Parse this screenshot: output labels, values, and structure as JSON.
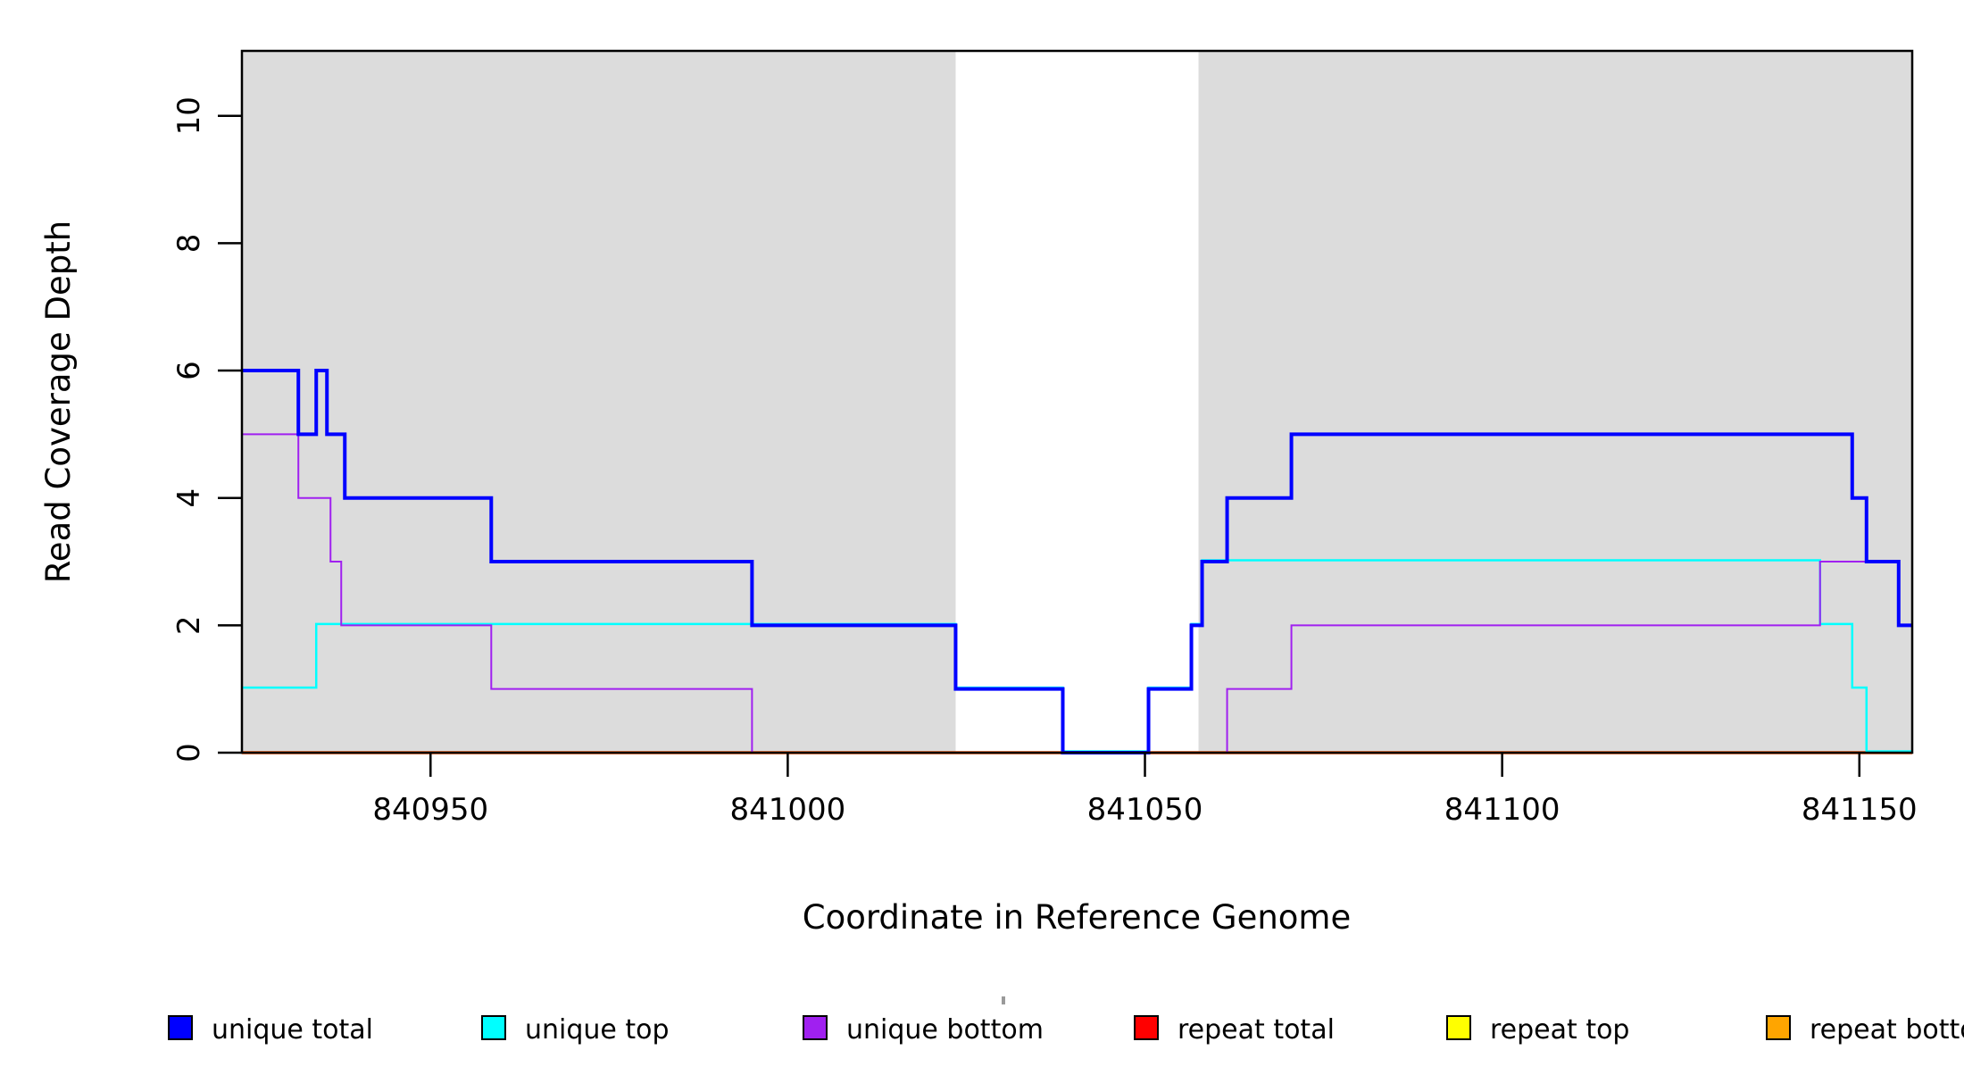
{
  "figure": {
    "xlabel": "Coordinate in Reference Genome",
    "ylabel": "Read Coverage Depth"
  },
  "chart_data": {
    "type": "line",
    "subtype": "step-coverage",
    "title": "",
    "xlabel": "Coordinate in Reference Genome",
    "ylabel": "Read Coverage Depth",
    "xlim": [
      840923.6,
      841157.4
    ],
    "ylim": [
      0,
      11.02
    ],
    "x_ticks": [
      840950,
      841000,
      841050,
      841100,
      841150
    ],
    "y_ticks": [
      0,
      2,
      4,
      6,
      8,
      10
    ],
    "grid": false,
    "legend_position": "bottom",
    "plot_background": "#ffffff",
    "shaded_regions": {
      "color": "#DCDCDC",
      "regions": [
        [
          840923.6,
          841023.5
        ],
        [
          841057.5,
          841157.4
        ]
      ]
    },
    "series": [
      {
        "name": "repeat total",
        "color": "#FF0000",
        "width": 3.5,
        "steps": [
          [
            840923.6,
            0
          ]
        ]
      },
      {
        "name": "repeat top",
        "color": "#FFFF00",
        "width": 3,
        "steps": [
          [
            840923.6,
            0
          ]
        ]
      },
      {
        "name": "repeat bottom",
        "color": "#FFA500",
        "width": 3,
        "steps": [
          [
            840923.6,
            0
          ]
        ]
      },
      {
        "name": "unique top",
        "color": "#00FFFF",
        "width": 2.5,
        "y_nudge": -1.5,
        "steps": [
          [
            840923.6,
            1
          ],
          [
            840934,
            2
          ],
          [
            841023.5,
            1
          ],
          [
            841038.5,
            0
          ],
          [
            841050.5,
            1
          ],
          [
            841056.5,
            2
          ],
          [
            841058,
            3
          ],
          [
            841144.5,
            2
          ],
          [
            841149,
            1
          ],
          [
            841151,
            0
          ]
        ]
      },
      {
        "name": "unique bottom",
        "color": "#A020F0",
        "width": 2,
        "steps": [
          [
            840923.6,
            5
          ],
          [
            840931.5,
            4
          ],
          [
            840936,
            3
          ],
          [
            840937.5,
            2
          ],
          [
            840958.5,
            1
          ],
          [
            840995,
            0
          ],
          [
            841061.5,
            1
          ],
          [
            841070.5,
            2
          ],
          [
            841144.5,
            3
          ],
          [
            841155.5,
            2
          ]
        ]
      },
      {
        "name": "unique total",
        "color": "#0000FF",
        "width": 4,
        "steps": [
          [
            840923.6,
            6
          ],
          [
            840931.5,
            5
          ],
          [
            840934,
            6
          ],
          [
            840935.5,
            5
          ],
          [
            840938,
            4
          ],
          [
            840958.5,
            3
          ],
          [
            840995,
            2
          ],
          [
            841023.5,
            1
          ],
          [
            841038.5,
            0
          ],
          [
            841050.5,
            1
          ],
          [
            841056.5,
            2
          ],
          [
            841058,
            3
          ],
          [
            841061.5,
            4
          ],
          [
            841070.5,
            5
          ],
          [
            841149,
            4
          ],
          [
            841151,
            3
          ],
          [
            841155.5,
            2
          ]
        ]
      }
    ],
    "legend": [
      {
        "label": "unique total",
        "color": "#0000FF"
      },
      {
        "label": "unique top",
        "color": "#00FFFF"
      },
      {
        "label": "unique bottom",
        "color": "#A020F0"
      },
      {
        "label": "repeat total",
        "color": "#FF0000"
      },
      {
        "label": "repeat top",
        "color": "#FFFF00"
      },
      {
        "label": "repeat bottom",
        "color": "#FFA500"
      }
    ]
  },
  "layout_note": ""
}
